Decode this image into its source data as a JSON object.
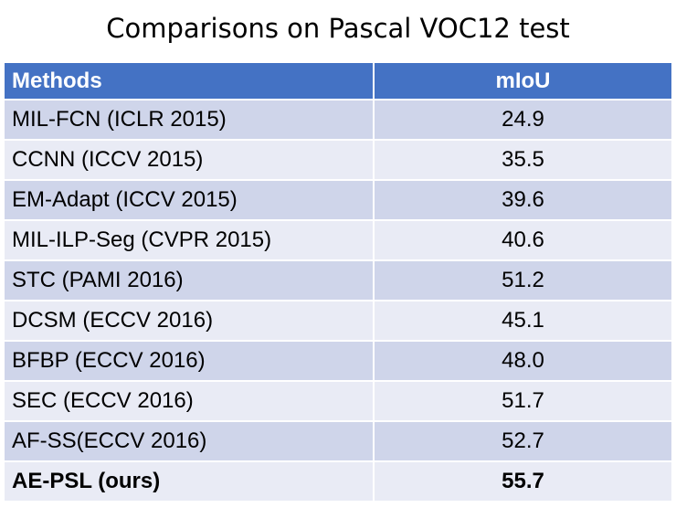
{
  "title": "Comparisons on Pascal VOC12 test",
  "table": {
    "headers": [
      "Methods",
      "mIoU"
    ],
    "rows": [
      {
        "method": "MIL-FCN (ICLR 2015)",
        "miou": "24.9"
      },
      {
        "method": "CCNN (ICCV 2015)",
        "miou": "35.5"
      },
      {
        "method": "EM-Adapt (ICCV 2015)",
        "miou": "39.6"
      },
      {
        "method": "MIL-ILP-Seg (CVPR 2015)",
        "miou": "40.6"
      },
      {
        "method": "STC (PAMI 2016)",
        "miou": "51.2"
      },
      {
        "method": "DCSM (ECCV 2016)",
        "miou": "45.1"
      },
      {
        "method": "BFBP (ECCV 2016)",
        "miou": "48.0"
      },
      {
        "method": "SEC (ECCV 2016)",
        "miou": "51.7"
      },
      {
        "method": "AF-SS(ECCV 2016)",
        "miou": "52.7"
      },
      {
        "method": "AE-PSL (ours)",
        "miou": "55.7"
      }
    ]
  },
  "colors": {
    "header_bg": "#4472c4",
    "row_dark": "#cfd5ea",
    "row_light": "#e9ebf5"
  }
}
